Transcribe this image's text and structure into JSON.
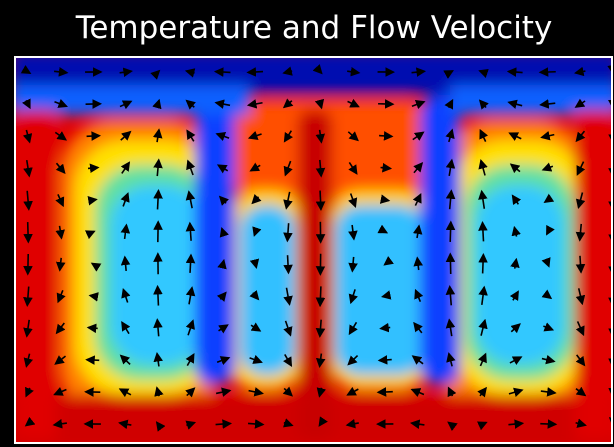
{
  "title": "Temperature and Flow Velocity"
}
